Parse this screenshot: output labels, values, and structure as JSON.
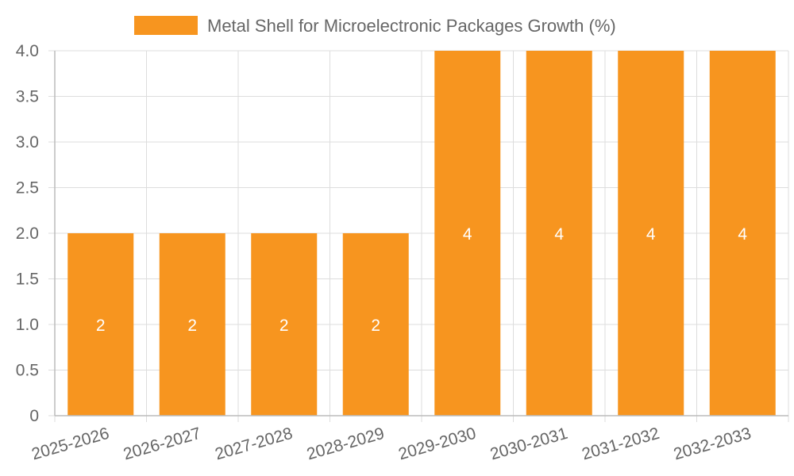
{
  "colors": {
    "bar": "#f7951f",
    "grid": "#dddddd",
    "text": "#666666"
  },
  "chart_data": {
    "type": "bar",
    "categories": [
      "2025-2026",
      "2026-2027",
      "2027-2028",
      "2028-2029",
      "2029-2030",
      "2030-2031",
      "2031-2032",
      "2032-2033"
    ],
    "series": [
      {
        "name": "Metal Shell for Microelectronic Packages Growth (%)",
        "values": [
          2,
          2,
          2,
          2,
          4,
          4,
          4,
          4
        ]
      }
    ],
    "ylim": [
      0,
      4
    ],
    "yticks": [
      "0",
      "0.5",
      "1.0",
      "1.5",
      "2.0",
      "2.5",
      "3.0",
      "3.5",
      "4.0"
    ],
    "data_labels": [
      "2",
      "2",
      "2",
      "2",
      "4",
      "4",
      "4",
      "4"
    ],
    "grid": true,
    "legend_position": "top"
  }
}
